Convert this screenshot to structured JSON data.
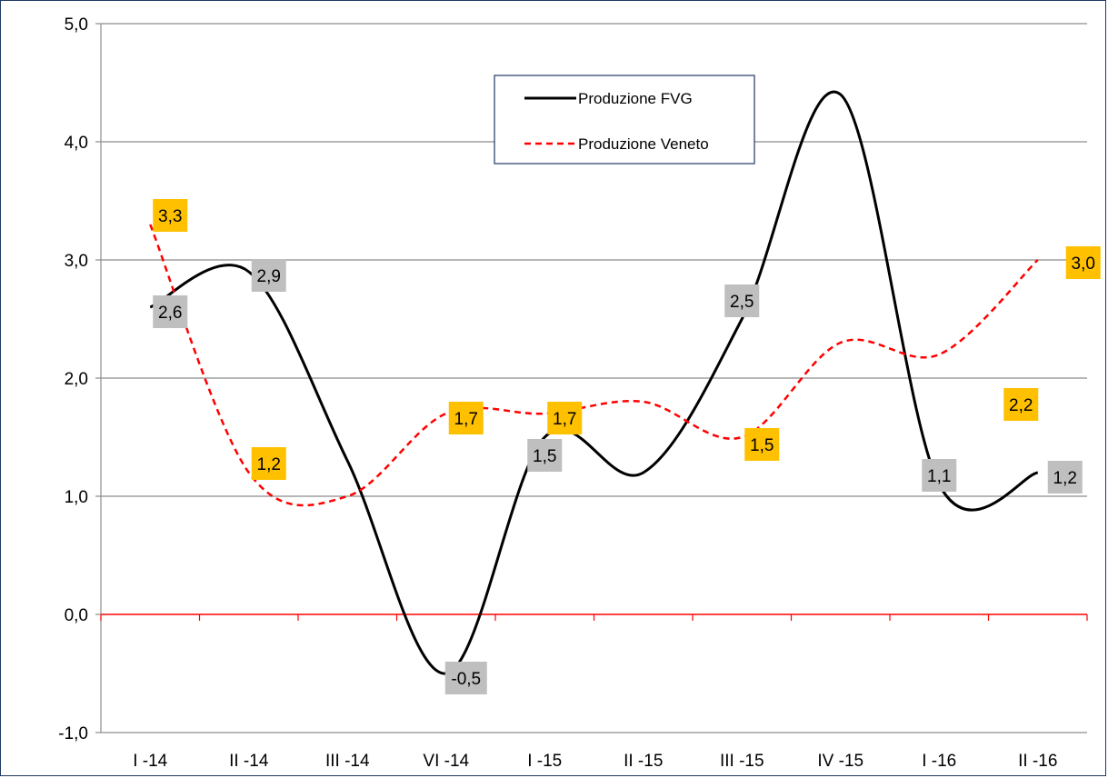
{
  "chart_data": {
    "type": "line",
    "categories": [
      "I -14",
      "II -14",
      "III -14",
      "VI -14",
      "I -15",
      "II -15",
      "III -15",
      "IV -15",
      "I -16",
      "II -16"
    ],
    "ylim": [
      -1.0,
      5.0
    ],
    "yticks": [
      "-1,0",
      "0,0",
      "1,0",
      "2,0",
      "3,0",
      "4,0",
      "5,0"
    ],
    "ytick_values": [
      -1,
      0,
      1,
      2,
      3,
      4,
      5
    ],
    "grid": true,
    "legend_position": "top-center",
    "series": [
      {
        "name": "Produzione FVG",
        "color": "#000000",
        "style": "solid",
        "values": [
          2.6,
          2.9,
          1.3,
          -0.5,
          1.5,
          1.2,
          2.5,
          4.4,
          1.1,
          1.2
        ],
        "labels": [
          "2,6",
          "2,9",
          "",
          "-0,5",
          "1,5",
          "",
          "2,5",
          "",
          "1,1",
          "1,2"
        ],
        "label_color": "#bfbfbf"
      },
      {
        "name": "Produzione Veneto",
        "color": "#ff0000",
        "style": "dashed",
        "values": [
          3.3,
          1.2,
          1.0,
          1.7,
          1.7,
          1.8,
          1.5,
          2.3,
          2.2,
          3.0
        ],
        "labels": [
          "3,3",
          "1,2",
          "",
          "1,7",
          "1,7",
          "",
          "1,5",
          "",
          "2,2",
          "3,0"
        ],
        "label_color": "#ffc000"
      }
    ],
    "zero_line_color": "#ff0000"
  }
}
